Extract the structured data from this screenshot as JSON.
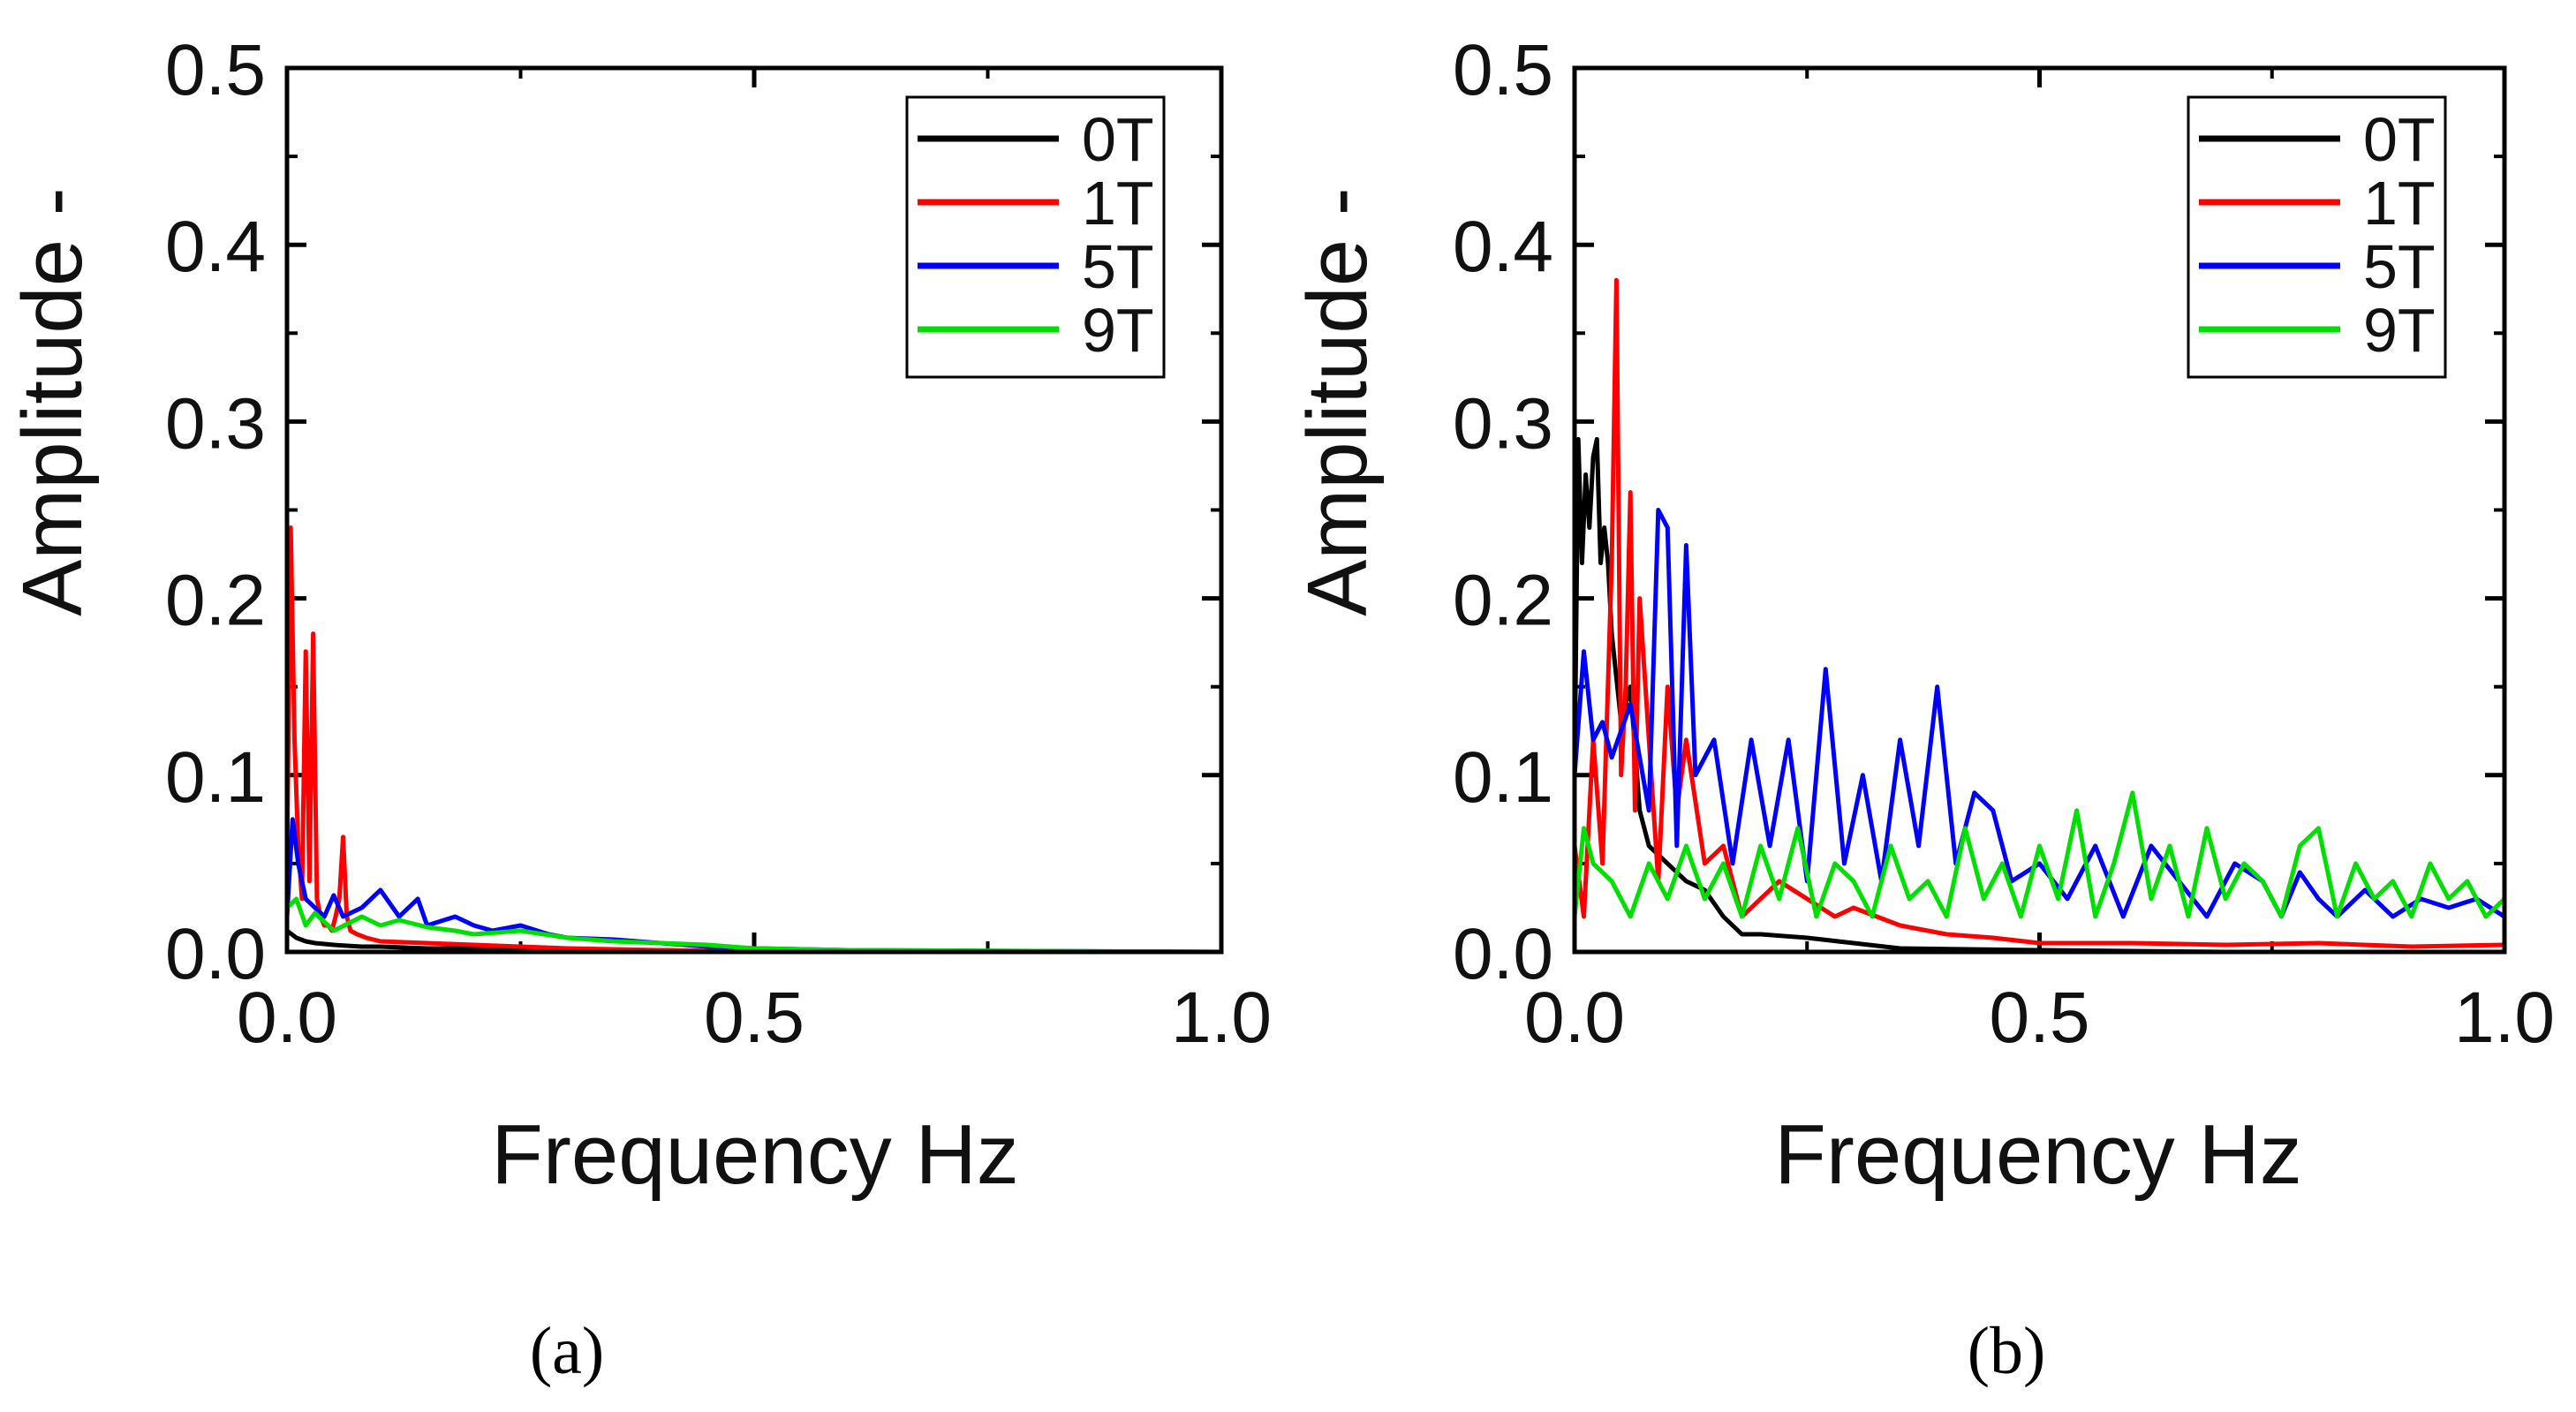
{
  "chart_data": [
    {
      "panel_label": "a",
      "type": "line",
      "xlabel": "Frequency Hz",
      "ylabel": "Amplitude -",
      "xlim": [
        0,
        1.0
      ],
      "ylim": [
        0,
        0.5
      ],
      "x_ticks": [
        "0.0",
        "0.5",
        "1.0"
      ],
      "y_ticks": [
        "0.0",
        "0.1",
        "0.2",
        "0.3",
        "0.4",
        "0.5"
      ],
      "legend_position": "top-right",
      "series": [
        {
          "name": "0T",
          "color": "#000000",
          "x": [
            0,
            0.005,
            0.01,
            0.02,
            0.03,
            0.05,
            0.08,
            0.1,
            0.15,
            0.2,
            0.3,
            0.4,
            0.5,
            0.6,
            0.8,
            1.0
          ],
          "y": [
            0.012,
            0.01,
            0.008,
            0.006,
            0.005,
            0.004,
            0.003,
            0.003,
            0.002,
            0.002,
            0.001,
            0.001,
            0.0,
            0.0,
            0.0,
            0.0
          ]
        },
        {
          "name": "1T",
          "color": "#ff0000",
          "x": [
            0,
            0.004,
            0.008,
            0.012,
            0.016,
            0.02,
            0.024,
            0.028,
            0.032,
            0.036,
            0.04,
            0.044,
            0.048,
            0.052,
            0.056,
            0.06,
            0.064,
            0.068,
            0.075,
            0.085,
            0.1,
            0.15,
            0.2,
            0.3,
            0.4,
            0.5,
            0.6,
            0.8,
            1.0
          ],
          "y": [
            0.05,
            0.24,
            0.12,
            0.06,
            0.03,
            0.17,
            0.04,
            0.18,
            0.03,
            0.02,
            0.015,
            0.015,
            0.012,
            0.02,
            0.03,
            0.065,
            0.02,
            0.012,
            0.01,
            0.008,
            0.006,
            0.005,
            0.004,
            0.002,
            0.001,
            0.0,
            0.0,
            0.0,
            0.0
          ]
        },
        {
          "name": "5T",
          "color": "#0000ff",
          "x": [
            0,
            0.006,
            0.012,
            0.02,
            0.03,
            0.04,
            0.05,
            0.06,
            0.08,
            0.1,
            0.12,
            0.14,
            0.15,
            0.18,
            0.2,
            0.22,
            0.25,
            0.28,
            0.3,
            0.35,
            0.4,
            0.45,
            0.5,
            0.6,
            0.8,
            1.0
          ],
          "y": [
            0.02,
            0.075,
            0.05,
            0.03,
            0.025,
            0.02,
            0.032,
            0.02,
            0.025,
            0.035,
            0.02,
            0.03,
            0.015,
            0.02,
            0.015,
            0.012,
            0.015,
            0.01,
            0.008,
            0.007,
            0.005,
            0.003,
            0.002,
            0.001,
            0.0005,
            0.0
          ]
        },
        {
          "name": "9T",
          "color": "#00e000",
          "x": [
            0,
            0.01,
            0.02,
            0.03,
            0.05,
            0.08,
            0.1,
            0.12,
            0.15,
            0.18,
            0.2,
            0.25,
            0.3,
            0.35,
            0.4,
            0.45,
            0.5,
            0.6,
            0.8,
            1.0
          ],
          "y": [
            0.025,
            0.03,
            0.015,
            0.022,
            0.012,
            0.02,
            0.015,
            0.018,
            0.014,
            0.012,
            0.01,
            0.012,
            0.008,
            0.006,
            0.005,
            0.004,
            0.002,
            0.001,
            0.0005,
            0.0
          ]
        }
      ],
      "panel_caption": "(a)"
    },
    {
      "panel_label": "b",
      "type": "line",
      "xlabel": "Frequency Hz",
      "ylabel": "Amplitude -",
      "xlim": [
        0,
        1.0
      ],
      "ylim": [
        0,
        0.5
      ],
      "x_ticks": [
        "0.0",
        "0.5",
        "1.0"
      ],
      "y_ticks": [
        "0.0",
        "0.1",
        "0.2",
        "0.3",
        "0.4",
        "0.5"
      ],
      "legend_position": "top-right",
      "series": [
        {
          "name": "0T",
          "color": "#000000",
          "x": [
            0,
            0.004,
            0.008,
            0.012,
            0.016,
            0.02,
            0.024,
            0.028,
            0.032,
            0.036,
            0.04,
            0.05,
            0.06,
            0.07,
            0.08,
            0.1,
            0.12,
            0.14,
            0.16,
            0.18,
            0.2,
            0.25,
            0.3,
            0.35,
            0.5,
            0.7,
            1.0
          ],
          "y": [
            0.1,
            0.29,
            0.22,
            0.27,
            0.24,
            0.28,
            0.29,
            0.22,
            0.24,
            0.22,
            0.18,
            0.13,
            0.15,
            0.08,
            0.06,
            0.05,
            0.04,
            0.035,
            0.02,
            0.01,
            0.01,
            0.008,
            0.005,
            0.002,
            0.001,
            0.0,
            0.0
          ]
        },
        {
          "name": "1T",
          "color": "#ff0000",
          "x": [
            0,
            0.01,
            0.02,
            0.03,
            0.04,
            0.045,
            0.05,
            0.055,
            0.06,
            0.065,
            0.07,
            0.08,
            0.09,
            0.1,
            0.11,
            0.12,
            0.14,
            0.16,
            0.18,
            0.2,
            0.22,
            0.25,
            0.28,
            0.3,
            0.35,
            0.4,
            0.45,
            0.5,
            0.6,
            0.7,
            0.8,
            0.9,
            1.0
          ],
          "y": [
            0.06,
            0.02,
            0.12,
            0.05,
            0.22,
            0.38,
            0.1,
            0.15,
            0.26,
            0.08,
            0.2,
            0.12,
            0.04,
            0.15,
            0.08,
            0.12,
            0.05,
            0.06,
            0.02,
            0.03,
            0.04,
            0.03,
            0.02,
            0.025,
            0.015,
            0.01,
            0.008,
            0.005,
            0.005,
            0.004,
            0.005,
            0.003,
            0.004
          ]
        },
        {
          "name": "5T",
          "color": "#0000ff",
          "x": [
            0,
            0.01,
            0.02,
            0.03,
            0.04,
            0.06,
            0.08,
            0.09,
            0.1,
            0.11,
            0.12,
            0.13,
            0.15,
            0.17,
            0.19,
            0.21,
            0.23,
            0.25,
            0.27,
            0.29,
            0.31,
            0.33,
            0.35,
            0.37,
            0.39,
            0.41,
            0.43,
            0.45,
            0.47,
            0.5,
            0.53,
            0.56,
            0.59,
            0.62,
            0.65,
            0.68,
            0.71,
            0.74,
            0.76,
            0.78,
            0.8,
            0.82,
            0.85,
            0.88,
            0.91,
            0.94,
            0.97,
            1.0
          ],
          "y": [
            0.1,
            0.17,
            0.12,
            0.13,
            0.11,
            0.14,
            0.08,
            0.25,
            0.24,
            0.06,
            0.23,
            0.1,
            0.12,
            0.05,
            0.12,
            0.06,
            0.12,
            0.04,
            0.16,
            0.05,
            0.1,
            0.04,
            0.12,
            0.06,
            0.15,
            0.05,
            0.09,
            0.08,
            0.04,
            0.05,
            0.03,
            0.06,
            0.02,
            0.06,
            0.04,
            0.02,
            0.05,
            0.04,
            0.02,
            0.045,
            0.03,
            0.02,
            0.035,
            0.02,
            0.03,
            0.025,
            0.03,
            0.02
          ]
        },
        {
          "name": "9T",
          "color": "#00e000",
          "x": [
            0,
            0.01,
            0.02,
            0.04,
            0.06,
            0.08,
            0.1,
            0.12,
            0.14,
            0.16,
            0.18,
            0.2,
            0.22,
            0.24,
            0.26,
            0.28,
            0.3,
            0.32,
            0.34,
            0.36,
            0.38,
            0.4,
            0.42,
            0.44,
            0.46,
            0.48,
            0.5,
            0.52,
            0.54,
            0.56,
            0.58,
            0.6,
            0.62,
            0.64,
            0.66,
            0.68,
            0.7,
            0.72,
            0.74,
            0.76,
            0.78,
            0.8,
            0.82,
            0.84,
            0.86,
            0.88,
            0.9,
            0.92,
            0.94,
            0.96,
            0.98,
            1.0
          ],
          "y": [
            0.02,
            0.07,
            0.05,
            0.04,
            0.02,
            0.05,
            0.03,
            0.06,
            0.03,
            0.05,
            0.02,
            0.06,
            0.03,
            0.07,
            0.02,
            0.05,
            0.04,
            0.02,
            0.06,
            0.03,
            0.04,
            0.02,
            0.07,
            0.03,
            0.05,
            0.02,
            0.06,
            0.03,
            0.08,
            0.02,
            0.05,
            0.09,
            0.03,
            0.06,
            0.02,
            0.07,
            0.03,
            0.05,
            0.04,
            0.02,
            0.06,
            0.07,
            0.02,
            0.05,
            0.03,
            0.04,
            0.02,
            0.05,
            0.03,
            0.04,
            0.02,
            0.03
          ]
        }
      ],
      "panel_caption": "(b)"
    }
  ]
}
